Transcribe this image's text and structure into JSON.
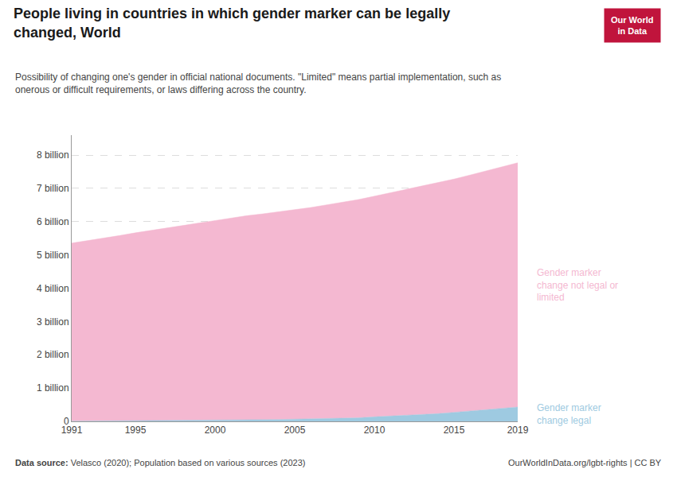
{
  "chart_data": {
    "type": "area",
    "stacked": true,
    "title": "People living in countries in which gender marker can be legally\nchanged, World",
    "subtitle": "Possibility of changing one's gender in official national documents. \"Limited\" means partial implementation, such as\nonerous or difficult requirements, or laws differing across the country.",
    "source_label": "Data source:",
    "source": "Velasco (2020); Population based on various sources (2023)",
    "footer_right": "OurWorldInData.org/lgbt-rights | CC BY",
    "logo": {
      "text": [
        "Our World",
        "in Data"
      ],
      "color": "#c0143c"
    },
    "x": [
      1991,
      1992,
      1993,
      1994,
      1995,
      1996,
      1997,
      1998,
      1999,
      2000,
      2001,
      2002,
      2003,
      2004,
      2005,
      2006,
      2007,
      2008,
      2009,
      2010,
      2011,
      2012,
      2013,
      2014,
      2015,
      2016,
      2017,
      2018,
      2019
    ],
    "series": [
      {
        "name": "Gender marker\nchange legal",
        "color": "#9ecae1",
        "values": [
          0.005,
          0.008,
          0.01,
          0.012,
          0.015,
          0.018,
          0.02,
          0.022,
          0.025,
          0.03,
          0.035,
          0.04,
          0.045,
          0.055,
          0.065,
          0.075,
          0.085,
          0.095,
          0.105,
          0.135,
          0.155,
          0.175,
          0.2,
          0.23,
          0.27,
          0.31,
          0.35,
          0.39,
          0.43
        ]
      },
      {
        "name": "Gender marker\nchange not legal or\nlimited",
        "color": "#f4b8d1",
        "values": [
          5.35,
          5.42,
          5.49,
          5.57,
          5.65,
          5.72,
          5.79,
          5.87,
          5.94,
          6.01,
          6.08,
          6.14,
          6.19,
          6.24,
          6.29,
          6.35,
          6.42,
          6.49,
          6.56,
          6.63,
          6.71,
          6.79,
          6.87,
          6.94,
          7.01,
          7.09,
          7.17,
          7.25,
          7.34
        ]
      }
    ],
    "xlim": [
      1991,
      2019
    ],
    "xticks": [
      1991,
      1995,
      2000,
      2005,
      2010,
      2015,
      2019
    ],
    "ylim": [
      0,
      8.6
    ],
    "yticks": [
      0,
      {
        "value": 1,
        "label": "1 billion"
      },
      {
        "value": 2,
        "label": "2 billion"
      },
      {
        "value": 3,
        "label": "3 billion"
      },
      {
        "value": 4,
        "label": "4 billion"
      },
      {
        "value": 5,
        "label": "5 billion"
      },
      {
        "value": 6,
        "label": "6 billion"
      },
      {
        "value": 7,
        "label": "7 billion"
      },
      {
        "value": 8,
        "label": "8 billion"
      }
    ],
    "grid": true
  }
}
